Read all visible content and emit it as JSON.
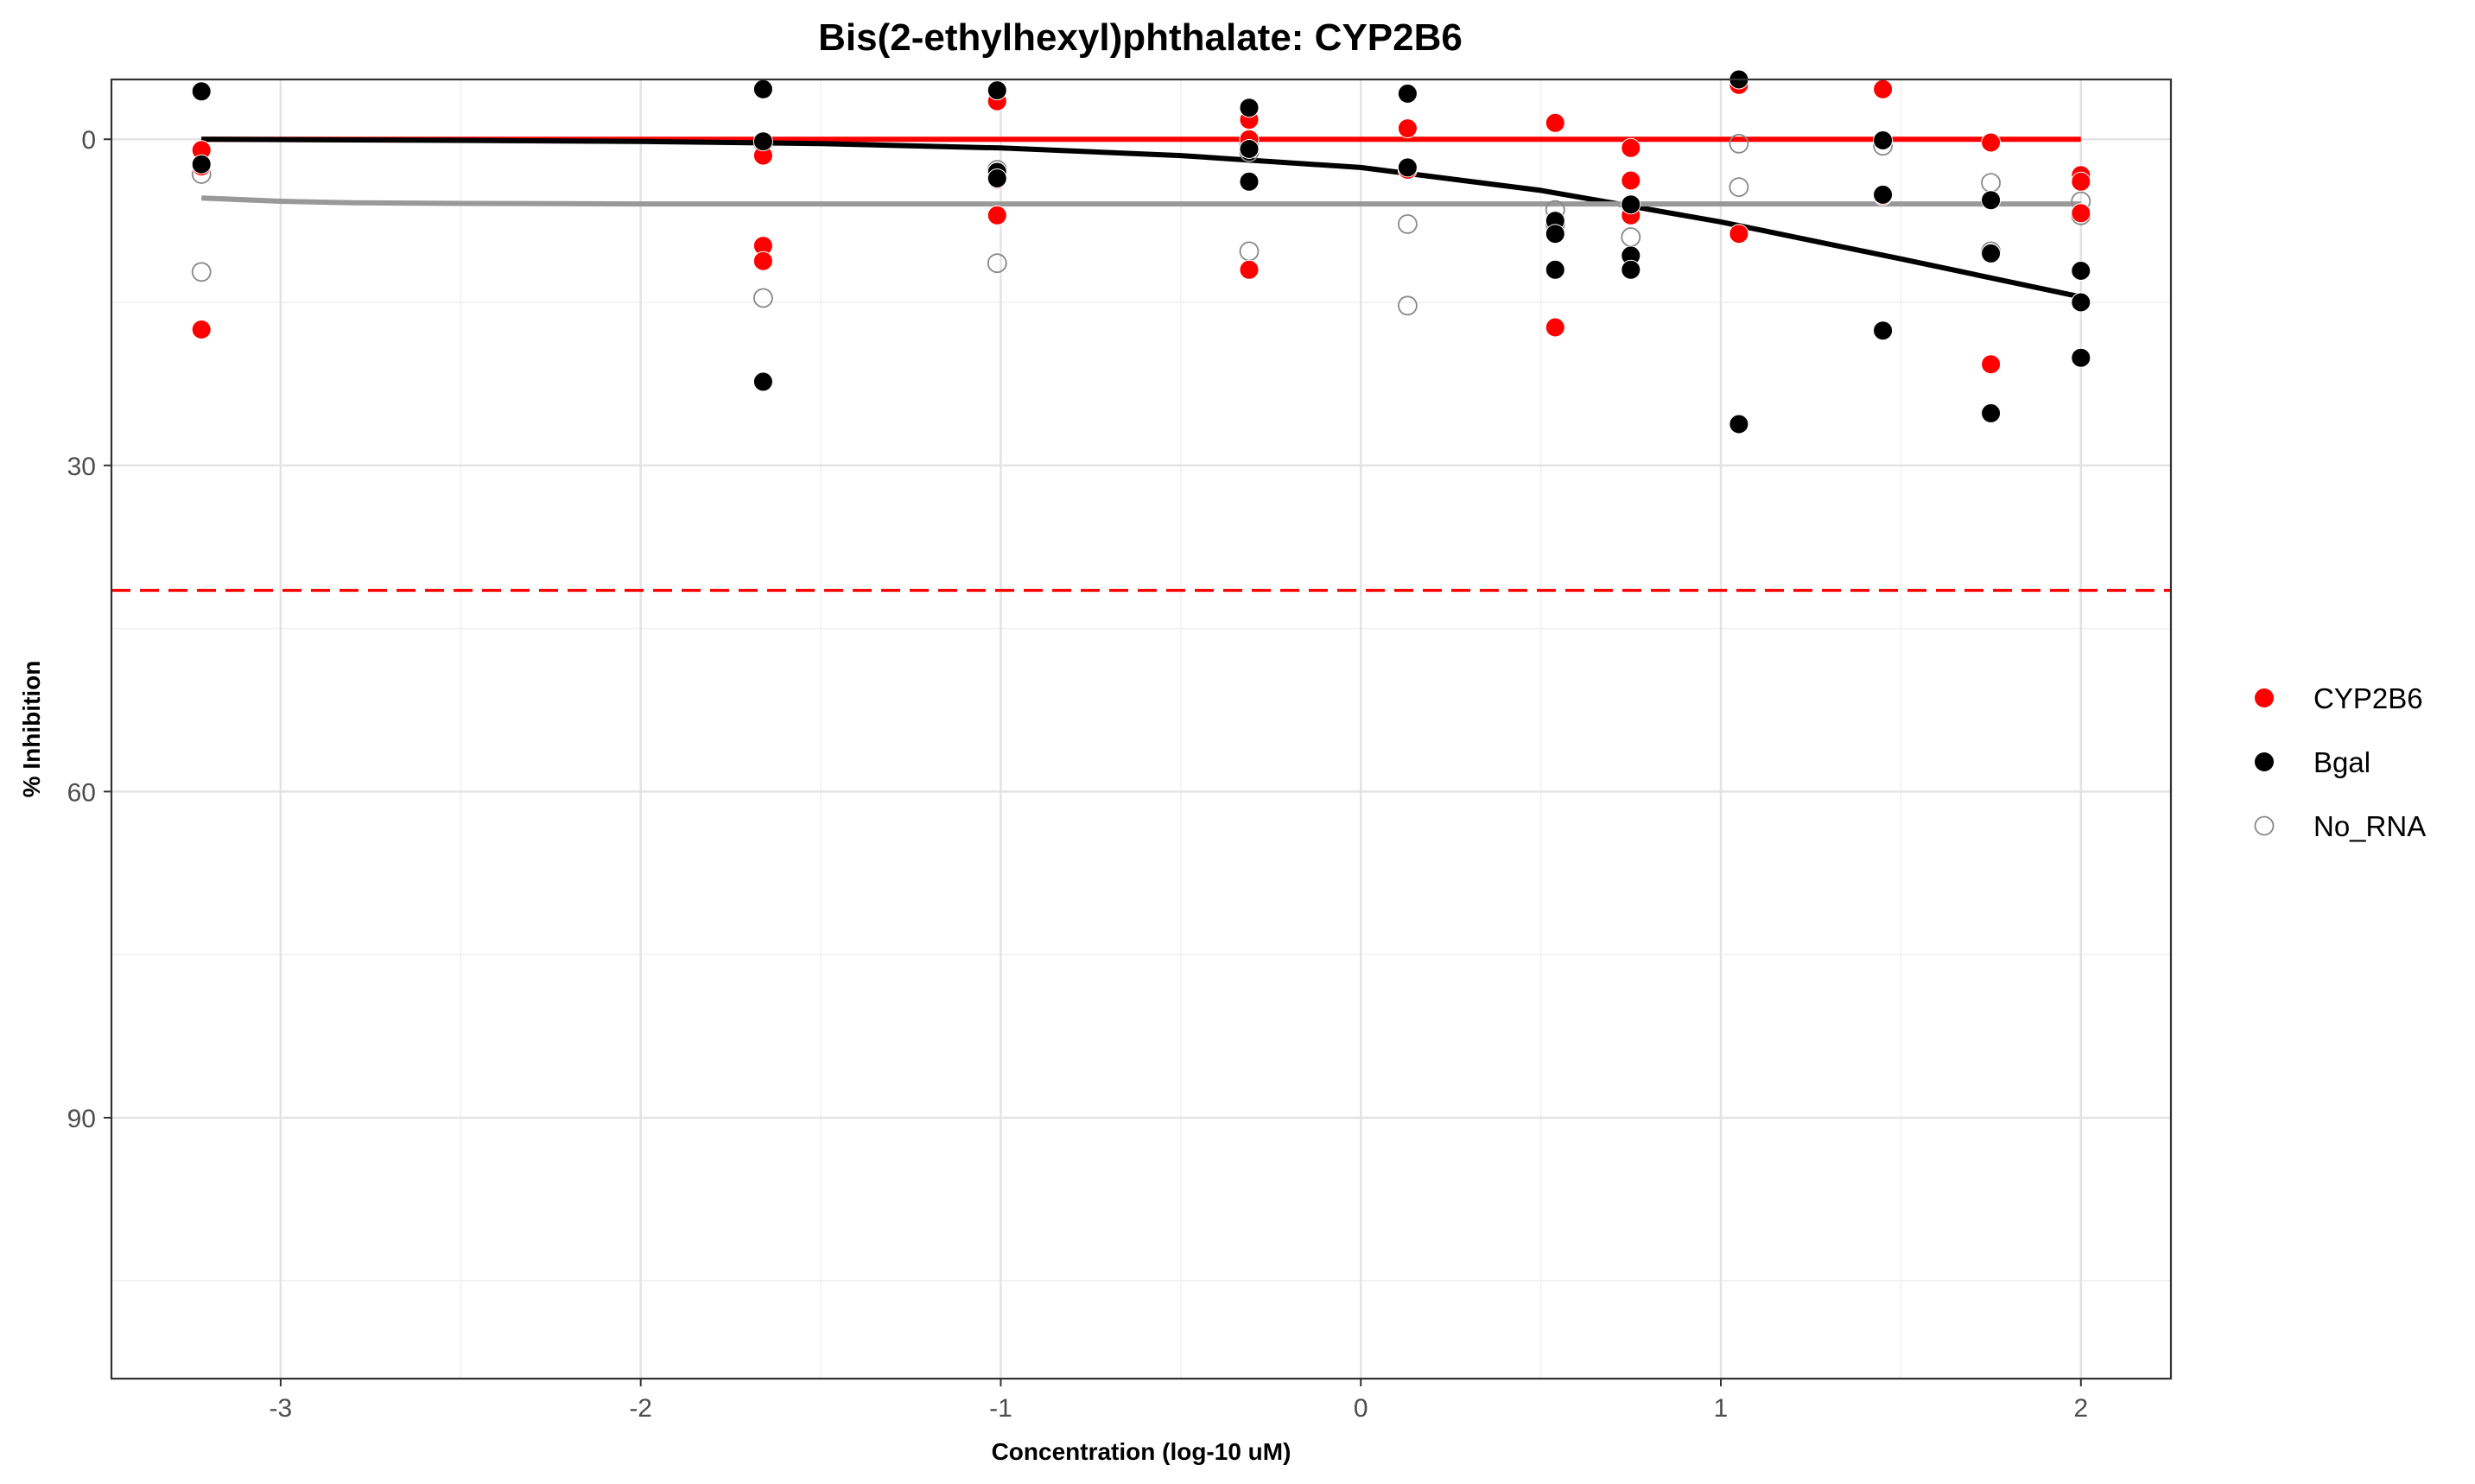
{
  "chart_data": {
    "type": "scatter",
    "title": "Bis(2-ethylhexyl)phthalate: CYP2B6",
    "xlabel": "Concentration (log-10 uM)",
    "ylabel": "% Inhibition",
    "xlim": [
      -3.47,
      2.25
    ],
    "ylim": [
      114,
      -5.5
    ],
    "y_reversed": true,
    "x_ticks": [
      -3,
      -2,
      -1,
      0,
      1,
      2
    ],
    "x_tick_labels": [
      "-3",
      "-2",
      "-1",
      "0",
      "1",
      "2"
    ],
    "y_ticks": [
      0,
      30,
      60,
      90
    ],
    "y_tick_labels": [
      "0",
      "30",
      "60",
      "90"
    ],
    "x_minor_ticks": [
      -2.5,
      -1.5,
      -0.5,
      0.5,
      1.5
    ],
    "y_minor_ticks": [
      15,
      45,
      75,
      105
    ],
    "grid": true,
    "legend_position": "right",
    "threshold_line": {
      "y": 41.5,
      "color": "#ff0000",
      "style": "dashed"
    },
    "series": [
      {
        "name": "CYP2B6",
        "color": "#ff0000",
        "marker": "filled-circle",
        "points": [
          [
            -3.22,
            1.0
          ],
          [
            -3.22,
            2.5
          ],
          [
            -3.22,
            17.5
          ],
          [
            -1.66,
            1.5
          ],
          [
            -1.66,
            9.8
          ],
          [
            -1.66,
            11.2
          ],
          [
            -1.01,
            -3.5
          ],
          [
            -1.01,
            3.7
          ],
          [
            -1.01,
            7.0
          ],
          [
            -0.31,
            -1.8
          ],
          [
            -0.31,
            0.0
          ],
          [
            -0.31,
            12.0
          ],
          [
            0.13,
            -1.0
          ],
          [
            0.13,
            2.8
          ],
          [
            0.54,
            -1.5
          ],
          [
            0.54,
            17.3
          ],
          [
            0.75,
            0.8
          ],
          [
            0.75,
            3.8
          ],
          [
            0.75,
            7.0
          ],
          [
            1.05,
            -5.0
          ],
          [
            1.05,
            8.7
          ],
          [
            1.45,
            -4.6
          ],
          [
            1.45,
            5.2
          ],
          [
            1.75,
            0.3
          ],
          [
            1.75,
            20.7
          ],
          [
            2.0,
            3.3
          ],
          [
            2.0,
            3.9
          ],
          [
            2.0,
            6.8
          ]
        ],
        "fit_line": {
          "x": [
            -3.22,
            2.0
          ],
          "y": [
            0.0,
            0.0
          ]
        }
      },
      {
        "name": "Bgal",
        "color": "#000000",
        "marker": "filled-circle",
        "points": [
          [
            -3.22,
            -4.4
          ],
          [
            -3.22,
            2.3
          ],
          [
            -1.66,
            -4.6
          ],
          [
            -1.66,
            0.2
          ],
          [
            -1.66,
            22.3
          ],
          [
            -1.01,
            -4.5
          ],
          [
            -1.01,
            3.0
          ],
          [
            -1.01,
            3.6
          ],
          [
            -0.31,
            -2.9
          ],
          [
            -0.31,
            0.9
          ],
          [
            -0.31,
            3.9
          ],
          [
            0.13,
            -4.2
          ],
          [
            0.13,
            2.6
          ],
          [
            0.54,
            7.5
          ],
          [
            0.54,
            8.7
          ],
          [
            0.54,
            12.0
          ],
          [
            0.75,
            6.0
          ],
          [
            0.75,
            10.7
          ],
          [
            0.75,
            12.0
          ],
          [
            1.05,
            -5.5
          ],
          [
            1.05,
            26.2
          ],
          [
            1.45,
            0.1
          ],
          [
            1.45,
            5.1
          ],
          [
            1.45,
            17.6
          ],
          [
            1.75,
            5.6
          ],
          [
            1.75,
            10.5
          ],
          [
            1.75,
            25.2
          ],
          [
            2.0,
            12.1
          ],
          [
            2.0,
            15.0
          ],
          [
            2.0,
            20.1
          ]
        ],
        "fit_line": {
          "x": [
            -3.22,
            -2.5,
            -2.0,
            -1.5,
            -1.0,
            -0.5,
            0.0,
            0.5,
            1.0,
            1.5,
            2.0
          ],
          "y": [
            0.0,
            0.1,
            0.2,
            0.4,
            0.8,
            1.5,
            2.6,
            4.7,
            7.6,
            11.0,
            14.5
          ]
        }
      },
      {
        "name": "No_RNA",
        "color": "#888888",
        "marker": "open-circle",
        "points": [
          [
            -3.22,
            3.2
          ],
          [
            -3.22,
            12.2
          ],
          [
            -1.66,
            0.3
          ],
          [
            -1.66,
            14.6
          ],
          [
            -1.01,
            2.8
          ],
          [
            -1.01,
            11.4
          ],
          [
            -0.31,
            0.4
          ],
          [
            -0.31,
            1.2
          ],
          [
            -0.31,
            10.3
          ],
          [
            0.13,
            7.8
          ],
          [
            0.13,
            15.3
          ],
          [
            0.54,
            6.5
          ],
          [
            0.54,
            7.8
          ],
          [
            0.75,
            9.0
          ],
          [
            1.05,
            0.4
          ],
          [
            1.05,
            4.4
          ],
          [
            1.45,
            0.6
          ],
          [
            1.75,
            4.0
          ],
          [
            1.75,
            10.3
          ],
          [
            2.0,
            5.7
          ],
          [
            2.0,
            7.0
          ]
        ],
        "fit_line": {
          "x": [
            -3.22,
            -3.0,
            -2.8,
            -2.5,
            -2.0,
            0.0,
            2.0
          ],
          "y": [
            5.4,
            5.7,
            5.85,
            5.9,
            5.95,
            5.95,
            5.95
          ]
        }
      }
    ]
  }
}
